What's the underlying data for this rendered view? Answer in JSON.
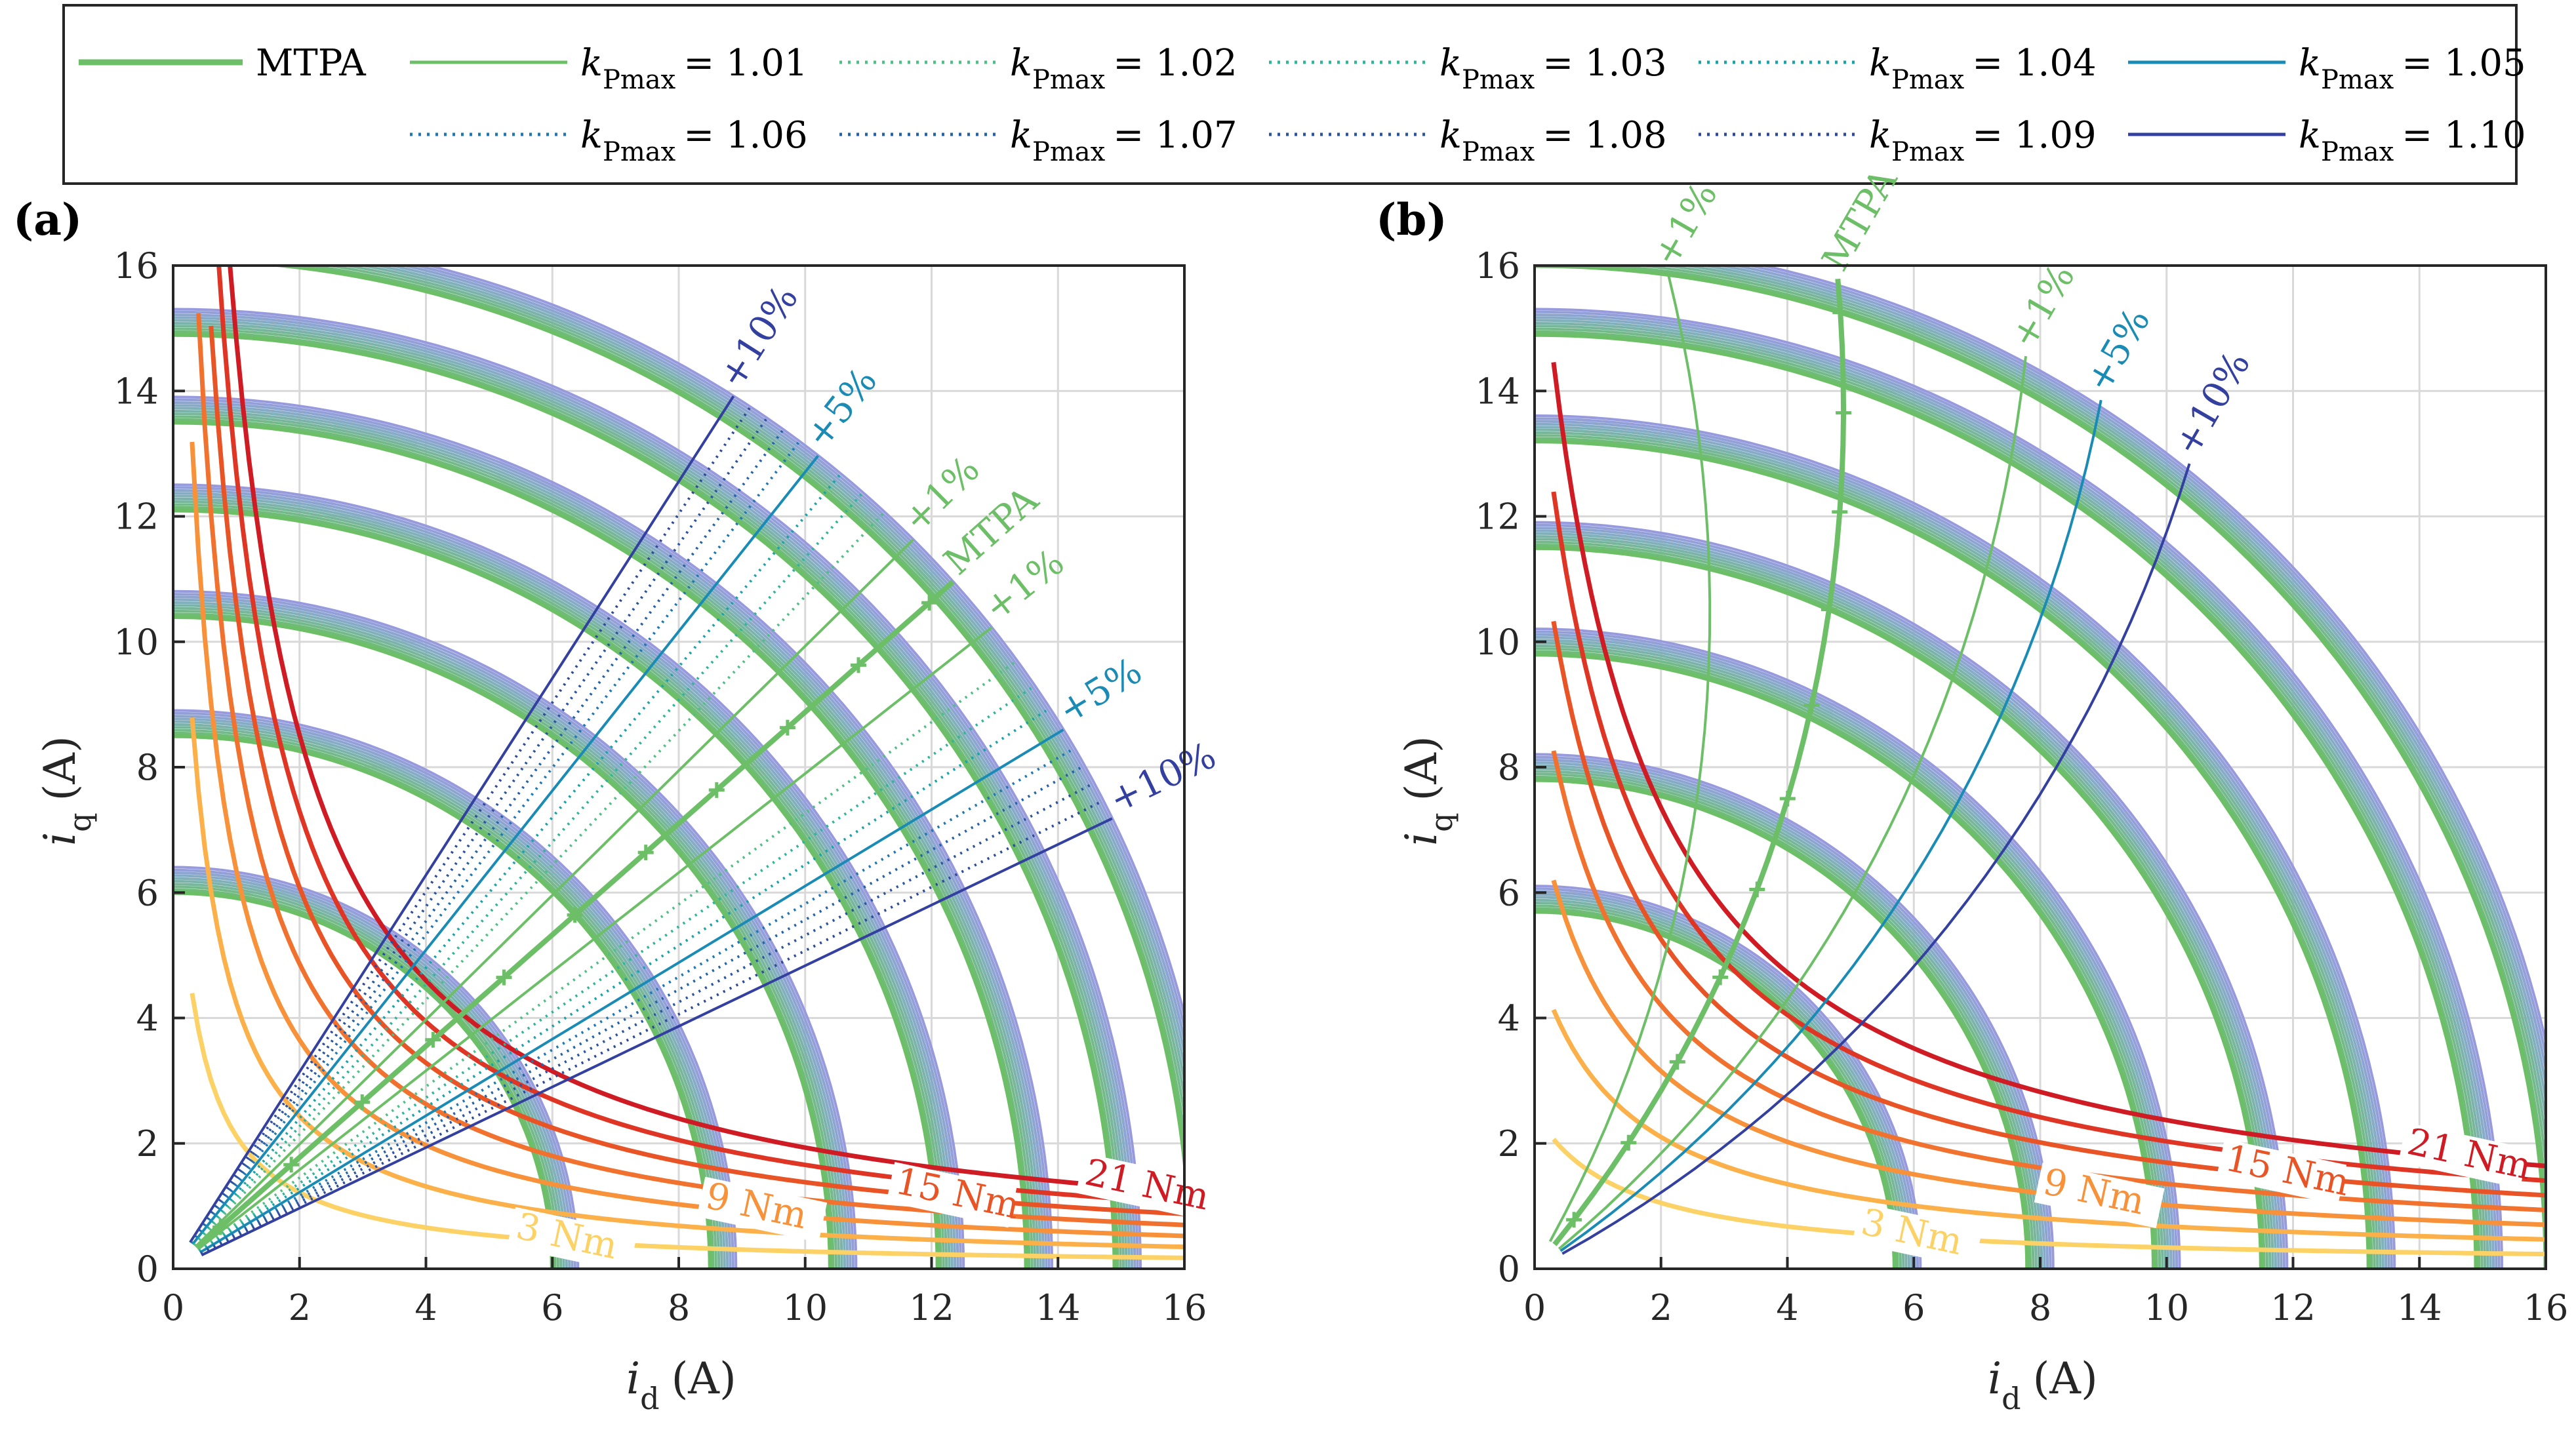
{
  "legend": {
    "entries": [
      {
        "name": "MTPA",
        "label": "MTPA",
        "color": "#6dbf67",
        "style": "solid-thick"
      },
      {
        "name": "k101",
        "k": "k",
        "sub": "Pmax",
        "value": "= 1.01",
        "color": "#6dbf67",
        "style": "solid"
      },
      {
        "name": "k102",
        "k": "k",
        "sub": "Pmax",
        "value": "= 1.02",
        "color": "#4fbf86",
        "style": "dotted"
      },
      {
        "name": "k103",
        "k": "k",
        "sub": "Pmax",
        "value": "= 1.03",
        "color": "#2fb59a",
        "style": "dotted"
      },
      {
        "name": "k104",
        "k": "k",
        "sub": "Pmax",
        "value": "= 1.04",
        "color": "#1aa3a8",
        "style": "dotted"
      },
      {
        "name": "k105",
        "k": "k",
        "sub": "Pmax",
        "value": "= 1.05",
        "color": "#1a8bb5",
        "style": "solid"
      },
      {
        "name": "k106",
        "k": "k",
        "sub": "Pmax",
        "value": "= 1.06",
        "color": "#1f77b4",
        "style": "dotted"
      },
      {
        "name": "k107",
        "k": "k",
        "sub": "Pmax",
        "value": "= 1.07",
        "color": "#2563a8",
        "style": "dotted"
      },
      {
        "name": "k108",
        "k": "k",
        "sub": "Pmax",
        "value": "= 1.08",
        "color": "#2b55a0",
        "style": "dotted"
      },
      {
        "name": "k109",
        "k": "k",
        "sub": "Pmax",
        "value": "= 1.09",
        "color": "#2e4a9a",
        "style": "dotted"
      },
      {
        "name": "k110",
        "k": "k",
        "sub": "Pmax",
        "value": "= 1.10",
        "color": "#3340a0",
        "style": "solid"
      }
    ]
  },
  "chart_data": [
    {
      "panel": "(a)",
      "type": "line",
      "xlabel": {
        "main": "i",
        "sub": "d",
        "unit": "(A)"
      },
      "ylabel": {
        "main": "i",
        "sub": "q",
        "unit": "(A)"
      },
      "xlim": [
        0,
        16
      ],
      "ylim": [
        0,
        16
      ],
      "xticks": [
        "0",
        "2",
        "4",
        "6",
        "8",
        "10",
        "12",
        "14",
        "16"
      ],
      "yticks": [
        "0",
        "2",
        "4",
        "6",
        "8",
        "10",
        "12",
        "14",
        "16"
      ],
      "grid": true,
      "current_circle_radii": [
        6,
        8.5,
        10.4,
        12.1,
        13.5,
        14.9,
        16.1
      ],
      "torque_curves": [
        {
          "label": "3 Nm",
          "torque": 3,
          "color": "#fcd267"
        },
        {
          "label": "",
          "torque": 6,
          "color": "#fbb04a"
        },
        {
          "label": "9 Nm",
          "torque": 9,
          "color": "#f7913a"
        },
        {
          "label": "",
          "torque": 12,
          "color": "#f1722f"
        },
        {
          "label": "15 Nm",
          "torque": 15,
          "color": "#e95427"
        },
        {
          "label": "",
          "torque": 18,
          "color": "#df3525"
        },
        {
          "label": "21 Nm",
          "torque": 21,
          "color": "#cf1c24"
        }
      ],
      "operating_lines": [
        {
          "label": "+10%",
          "k": 1.1,
          "angle_deg": 57.5,
          "color": "#3340a0",
          "style": "solid"
        },
        {
          "label": "",
          "k": 1.09,
          "angle_deg": 56.4,
          "color": "#2e4a9a",
          "style": "dotted"
        },
        {
          "label": "",
          "k": 1.08,
          "angle_deg": 55.3,
          "color": "#2b55a0",
          "style": "dotted"
        },
        {
          "label": "",
          "k": 1.07,
          "angle_deg": 54.2,
          "color": "#2563a8",
          "style": "dotted"
        },
        {
          "label": "",
          "k": 1.06,
          "angle_deg": 53.1,
          "color": "#1f77b4",
          "style": "dotted"
        },
        {
          "label": "+5%",
          "k": 1.05,
          "angle_deg": 51.8,
          "color": "#1a8bb5",
          "style": "solid"
        },
        {
          "label": "",
          "k": 1.04,
          "angle_deg": 50.2,
          "color": "#1aa3a8",
          "style": "dotted"
        },
        {
          "label": "",
          "k": 1.03,
          "angle_deg": 48.6,
          "color": "#2fb59a",
          "style": "dotted"
        },
        {
          "label": "",
          "k": 1.02,
          "angle_deg": 47.0,
          "color": "#4fbf86",
          "style": "dotted"
        },
        {
          "label": "+1%",
          "k": 1.01,
          "angle_deg": 44.8,
          "color": "#6dbf67",
          "style": "solid"
        },
        {
          "label": "MTPA",
          "k": 1.0,
          "angle_deg": 41.6,
          "color": "#6dbf67",
          "style": "mtpa"
        },
        {
          "label": "+1%",
          "k": 1.01,
          "angle_deg": 38.3,
          "color": "#6dbf67",
          "style": "solid"
        },
        {
          "label": "",
          "k": 1.02,
          "angle_deg": 36.0,
          "color": "#4fbf86",
          "style": "dotted"
        },
        {
          "label": "",
          "k": 1.03,
          "angle_deg": 34.3,
          "color": "#2fb59a",
          "style": "dotted"
        },
        {
          "label": "",
          "k": 1.04,
          "angle_deg": 32.8,
          "color": "#1aa3a8",
          "style": "dotted"
        },
        {
          "label": "+5%",
          "k": 1.05,
          "angle_deg": 31.4,
          "color": "#1a8bb5",
          "style": "solid"
        },
        {
          "label": "",
          "k": 1.06,
          "angle_deg": 30.2,
          "color": "#1f77b4",
          "style": "dotted"
        },
        {
          "label": "",
          "k": 1.07,
          "angle_deg": 29.1,
          "color": "#2563a8",
          "style": "dotted"
        },
        {
          "label": "",
          "k": 1.08,
          "angle_deg": 28.0,
          "color": "#2b55a0",
          "style": "dotted"
        },
        {
          "label": "",
          "k": 1.09,
          "angle_deg": 26.9,
          "color": "#2e4a9a",
          "style": "dotted"
        },
        {
          "label": "+10%",
          "k": 1.1,
          "angle_deg": 25.8,
          "color": "#3340a0",
          "style": "solid"
        }
      ]
    },
    {
      "panel": "(b)",
      "type": "line",
      "xlabel": {
        "main": "i",
        "sub": "d",
        "unit": "(A)"
      },
      "ylabel": {
        "main": "i",
        "sub": "q",
        "unit": "(A)"
      },
      "xlim": [
        0,
        16
      ],
      "ylim": [
        0,
        16
      ],
      "xticks": [
        "0",
        "2",
        "4",
        "6",
        "8",
        "10",
        "12",
        "14",
        "16"
      ],
      "yticks": [
        "0",
        "2",
        "4",
        "6",
        "8",
        "10",
        "12",
        "14",
        "16"
      ],
      "grid": true,
      "current_circle_radii": [
        5.7,
        7.8,
        9.8,
        11.5,
        13.2,
        14.9,
        16.0
      ],
      "torque_curves": [
        {
          "label": "3 Nm",
          "torque": 3,
          "color": "#fcd267"
        },
        {
          "label": "",
          "torque": 6,
          "color": "#fbb04a"
        },
        {
          "label": "9 Nm",
          "torque": 9,
          "color": "#f7913a"
        },
        {
          "label": "",
          "torque": 12,
          "color": "#f1722f"
        },
        {
          "label": "15 Nm",
          "torque": 15,
          "color": "#e95427"
        },
        {
          "label": "",
          "torque": 18,
          "color": "#df3525"
        },
        {
          "label": "21 Nm",
          "torque": 21,
          "color": "#cf1c24"
        }
      ],
      "operating_lines": [
        {
          "label": "+10%",
          "k": 1.1,
          "side": "right",
          "color": "#3340a0",
          "style": "solid"
        },
        {
          "label": "+5%",
          "k": 1.05,
          "side": "right",
          "color": "#1a8bb5",
          "style": "solid"
        },
        {
          "label": "+1%",
          "k": 1.01,
          "side": "right",
          "color": "#6dbf67",
          "style": "solid"
        },
        {
          "label": "MTPA",
          "k": 1.0,
          "side": "mid",
          "color": "#6dbf67",
          "style": "mtpa"
        },
        {
          "label": "+1%",
          "k": 1.01,
          "side": "left",
          "color": "#6dbf67",
          "style": "solid"
        }
      ]
    }
  ]
}
